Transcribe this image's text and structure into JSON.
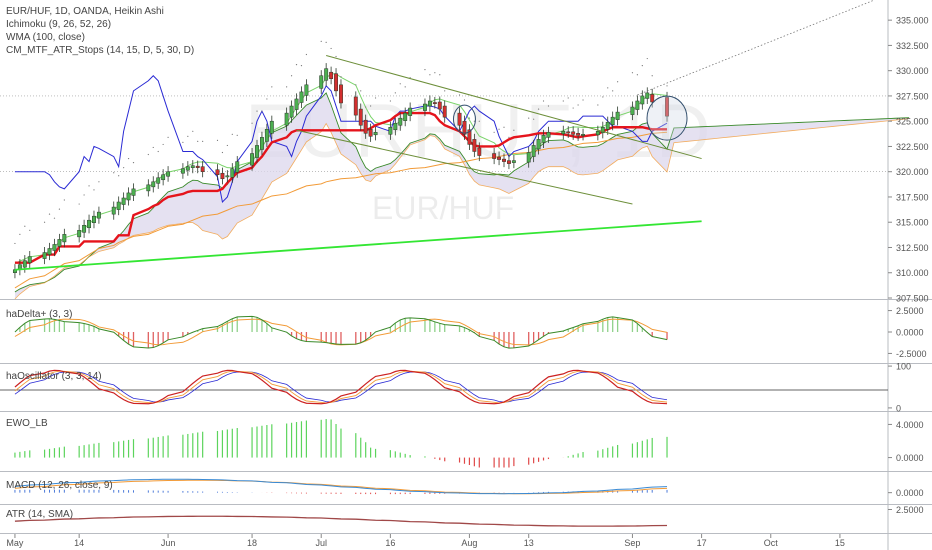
{
  "chart_data": {
    "type": "line",
    "title": "EUR/HUF, 1D, OANDA, Heikin Ashi",
    "indicators": [
      "Ichimoku (9, 26, 52, 26)",
      "WMA (100, close)",
      "CM_MTF_ATR_Stops (14, 15, D, 5, 30, D)"
    ],
    "watermark": {
      "symbol": "EURHUF, 1D",
      "pair": "EUR/HUF"
    },
    "colors": {
      "up_candle": "#4caf50",
      "down_candle": "#d32f2f",
      "atr_stop": "#e5141c",
      "wma": "#f29b38",
      "tenkan": "#2a2ad4",
      "kijun_green": "#7ad46a",
      "cloud": "#dcd7ec",
      "trendline": "#33e633",
      "channel": "#6d8f3a"
    },
    "x_axis": {
      "tick_labels": [
        "May",
        "14",
        "Jun",
        "18",
        "Jul",
        "16",
        "Aug",
        "13",
        "Sep",
        "17",
        "Oct",
        "15"
      ]
    },
    "main_panel": {
      "y_axis": {
        "ylim": [
          307.5,
          336.5
        ],
        "tick_labels": [
          "335.000",
          "332.500",
          "330.000",
          "327.500",
          "325.000",
          "322.500",
          "320.000",
          "317.500",
          "315.000",
          "312.500",
          "310.000",
          "307.500"
        ]
      },
      "dates": [
        "2018-05-01",
        "2018-05-02",
        "2018-05-03",
        "2018-05-04",
        "2018-05-07",
        "2018-05-08",
        "2018-05-09",
        "2018-05-10",
        "2018-05-11",
        "2018-05-14",
        "2018-05-15",
        "2018-05-16",
        "2018-05-17",
        "2018-05-18",
        "2018-05-21",
        "2018-05-22",
        "2018-05-23",
        "2018-05-24",
        "2018-05-25",
        "2018-05-28",
        "2018-05-29",
        "2018-05-30",
        "2018-05-31",
        "2018-06-01",
        "2018-06-04",
        "2018-06-05",
        "2018-06-06",
        "2018-06-07",
        "2018-06-08",
        "2018-06-11",
        "2018-06-12",
        "2018-06-13",
        "2018-06-14",
        "2018-06-15",
        "2018-06-18",
        "2018-06-19",
        "2018-06-20",
        "2018-06-21",
        "2018-06-22",
        "2018-06-25",
        "2018-06-26",
        "2018-06-27",
        "2018-06-28",
        "2018-06-29",
        "2018-07-02",
        "2018-07-03",
        "2018-07-04",
        "2018-07-05",
        "2018-07-06",
        "2018-07-09",
        "2018-07-10",
        "2018-07-11",
        "2018-07-12",
        "2018-07-13",
        "2018-07-16",
        "2018-07-17",
        "2018-07-18",
        "2018-07-19",
        "2018-07-20",
        "2018-07-23",
        "2018-07-24",
        "2018-07-25",
        "2018-07-26",
        "2018-07-27",
        "2018-07-30",
        "2018-07-31",
        "2018-08-01",
        "2018-08-02",
        "2018-08-03",
        "2018-08-06",
        "2018-08-07",
        "2018-08-08",
        "2018-08-09",
        "2018-08-10",
        "2018-08-13",
        "2018-08-14",
        "2018-08-15",
        "2018-08-16",
        "2018-08-17",
        "2018-08-20",
        "2018-08-21",
        "2018-08-22",
        "2018-08-23",
        "2018-08-24",
        "2018-08-27",
        "2018-08-28",
        "2018-08-29",
        "2018-08-30",
        "2018-08-31",
        "2018-09-03",
        "2018-09-04",
        "2018-09-05",
        "2018-09-06",
        "2018-09-07",
        "2018-09-10"
      ],
      "close": [
        310.3,
        310.8,
        311.2,
        311.6,
        312.0,
        312.4,
        312.8,
        313.3,
        313.8,
        314.2,
        314.7,
        315.2,
        315.6,
        316.0,
        316.5,
        317.0,
        317.4,
        317.9,
        318.3,
        318.7,
        319.0,
        319.4,
        319.7,
        320.0,
        320.3,
        320.5,
        320.6,
        320.4,
        320.0,
        319.7,
        319.3,
        319.6,
        320.3,
        321.0,
        321.8,
        322.6,
        323.4,
        324.2,
        325.0,
        325.8,
        326.5,
        327.2,
        327.9,
        328.6,
        329.5,
        330.2,
        329.2,
        328.0,
        326.8,
        325.6,
        324.6,
        323.8,
        323.5,
        323.9,
        324.4,
        324.8,
        325.3,
        325.8,
        326.3,
        326.7,
        327.0,
        326.8,
        326.2,
        325.4,
        324.6,
        323.7,
        322.7,
        322.0,
        321.6,
        321.3,
        321.2,
        321.0,
        320.8,
        321.1,
        321.9,
        322.6,
        323.2,
        323.6,
        323.9,
        324.0,
        323.9,
        323.7,
        323.6,
        323.7,
        324.0,
        324.4,
        324.9,
        325.4,
        325.9,
        326.4,
        327.0,
        327.5,
        327.8,
        326.9,
        325.5
      ],
      "atr_stops": [
        311,
        311,
        311,
        311,
        311.8,
        311.8,
        311.8,
        312.6,
        312.6,
        312.6,
        313.1,
        313.1,
        313.1,
        313.1,
        313.1,
        313.7,
        313.7,
        313.7,
        315.7,
        316.3,
        316.6,
        316.8,
        317.2,
        317.5,
        317.8,
        318.0,
        318.1,
        318.1,
        318.1,
        318.1,
        318.3,
        318.9,
        319.4,
        319.9,
        320.4,
        321.0,
        321.5,
        322.2,
        322.9,
        323.4,
        323.9,
        324.1,
        324.1,
        324.1,
        324.1,
        324.1,
        324.1,
        324.1,
        324.1,
        324.1,
        324.1,
        324.1,
        324.3,
        324.6,
        325.1,
        325.5,
        325.8,
        325.8,
        325.8,
        325.8,
        325.8,
        325.6,
        325.0,
        324.6,
        324.0,
        323.5,
        323.0,
        322.6,
        322.5,
        322.5,
        322.6,
        322.9,
        323.2,
        323.4,
        323.6,
        323.7,
        323.8,
        323.8,
        323.8,
        323.7,
        323.6,
        323.5,
        323.4,
        323.5,
        323.7,
        324.0,
        324.2,
        324.4,
        324.4,
        324.4,
        324.4,
        324.4,
        324.3,
        324.2,
        324.2
      ],
      "wma": [
        308.5,
        308.8,
        309.1,
        309.4,
        309.7,
        310.0,
        310.3,
        310.6,
        310.9,
        311.2,
        311.5,
        311.8,
        312.1,
        312.4,
        312.7,
        313.0,
        313.2,
        313.4,
        313.6,
        313.8,
        314.0,
        314.2,
        314.4,
        314.6,
        314.8,
        315.0,
        315.2,
        315.4,
        315.6,
        315.8,
        316.0,
        316.2,
        316.4,
        316.6,
        316.8,
        317.0,
        317.2,
        317.4,
        317.6,
        317.8,
        318.0,
        318.2,
        318.4,
        318.6,
        318.8,
        319.0,
        319.1,
        319.2,
        319.3,
        319.4,
        319.5,
        319.6,
        319.7,
        319.8,
        319.9,
        320.0,
        320.1,
        320.2,
        320.3,
        320.4,
        320.5,
        320.6,
        320.7,
        320.8,
        320.9,
        321.0,
        321.1,
        321.2,
        321.3,
        321.4,
        321.5,
        321.6,
        321.7,
        321.8,
        321.9,
        322.0,
        322.1,
        322.2,
        322.3,
        322.4,
        322.5,
        322.6,
        322.7,
        322.8,
        322.9,
        323.0,
        323.1,
        323.2,
        323.3,
        323.4,
        323.5,
        323.6,
        323.7,
        323.8,
        323.9
      ],
      "tenkan": [
        320,
        320,
        320,
        320,
        320,
        319.7,
        319,
        318.5,
        318.3,
        320,
        321.5,
        321,
        322.5,
        322.3,
        321.5,
        320.5,
        324,
        326,
        328,
        329,
        329.5,
        329,
        327.5,
        326,
        322,
        322,
        322,
        321.5,
        321.2,
        319.5,
        317,
        317.5,
        319,
        321,
        323,
        325,
        326,
        325,
        323,
        322.5,
        321.5,
        323,
        324,
        325.5,
        327.5,
        328.5,
        328,
        326.5,
        325,
        325,
        325,
        325,
        325,
        324.5,
        324,
        325.5,
        326,
        326,
        326.2,
        326.5,
        326.5,
        326.4,
        326.2,
        325.5,
        324,
        325,
        326,
        326.5,
        326,
        325,
        323.5,
        322.5,
        321.5,
        322,
        322.5,
        323,
        324,
        324.5,
        325,
        325,
        325,
        325,
        325,
        325.5,
        325.5,
        325.5,
        325,
        324.5,
        324.5,
        324,
        323.5,
        323,
        323,
        324,
        324.8
      ]
    },
    "trendline": {
      "start": [
        "2018-05-01",
        310.3
      ],
      "end": [
        "2018-09-17",
        315.1
      ]
    },
    "channel": {
      "upper_start": [
        "2018-07-03",
        331.5
      ],
      "upper_end": [
        "2018-09-17",
        321.3
      ],
      "lower_start": [
        "2018-06-27",
        324.1
      ],
      "lower_end": [
        "2018-09-03",
        316.8
      ]
    },
    "sub_panels": [
      {
        "name": "haDelta+ (3, 3)",
        "tick_labels": [
          "2.5000",
          "0.0000",
          "-2.5000"
        ],
        "ylim": [
          -3.5,
          3.5
        ]
      },
      {
        "name": "haOscillator (3, 3, 14)",
        "tick_labels": [
          "100",
          "0"
        ],
        "ylim": [
          -5,
          105
        ]
      },
      {
        "name": "EWO_LB",
        "tick_labels": [
          "4.0000",
          "0.0000"
        ],
        "ylim": [
          -1.5,
          5.5
        ]
      },
      {
        "name": "MACD (12, 26, close, 9)",
        "tick_labels": [
          "0.0000"
        ],
        "ylim": [
          -2,
          4
        ]
      },
      {
        "name": "ATR (14, SMA)",
        "tick_labels": [
          "2.5000"
        ],
        "ylim": [
          0,
          3
        ]
      }
    ]
  }
}
